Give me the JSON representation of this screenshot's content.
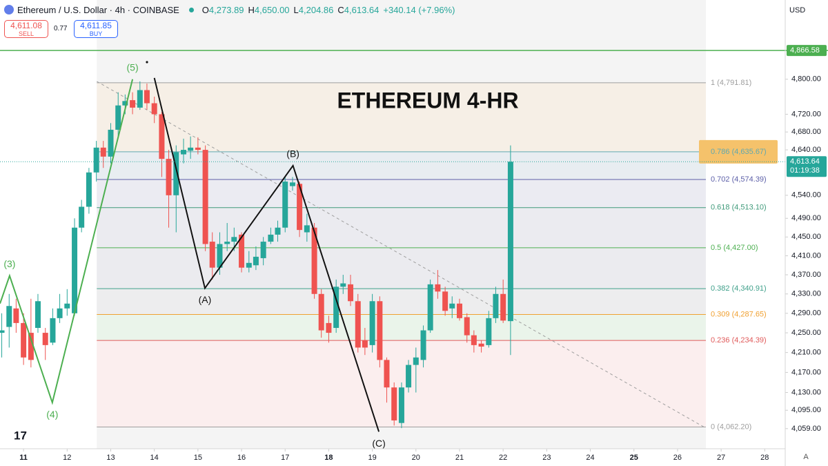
{
  "header": {
    "title": "Ethereum / U.S. Dollar · 4h · COINBASE",
    "ohlc": [
      {
        "key": "O",
        "value": "4,273.89"
      },
      {
        "key": "H",
        "value": "4,650.00"
      },
      {
        "key": "L",
        "value": "4,204.86"
      },
      {
        "key": "C",
        "value": "4,613.64"
      }
    ],
    "change": "+340.14 (+7.96%)",
    "sell": {
      "price": "4,611.08",
      "label": "SELL"
    },
    "spread": "0.77",
    "buy": {
      "price": "4,611.85",
      "label": "BUY"
    },
    "currency": "USD",
    "axis_mode": "A"
  },
  "chart_data": {
    "type": "candlestick",
    "annotation": "ETHEREUM 4-HR",
    "log_scale": true,
    "grid": false,
    "up_color": "#26a69a",
    "down_color": "#ef5350",
    "x": [
      10.5,
      10.67,
      10.83,
      11,
      11.17,
      11.33,
      11.5,
      11.67,
      11.83,
      12,
      12.17,
      12.33,
      12.5,
      12.67,
      12.83,
      13,
      13.17,
      13.33,
      13.5,
      13.67,
      13.83,
      14,
      14.17,
      14.33,
      14.5,
      14.67,
      14.83,
      15,
      15.17,
      15.33,
      15.5,
      15.67,
      15.83,
      16,
      16.17,
      16.33,
      16.5,
      16.67,
      16.83,
      17,
      17.17,
      17.33,
      17.5,
      17.67,
      17.83,
      18,
      18.17,
      18.33,
      18.5,
      18.67,
      18.83,
      19,
      19.17,
      19.33,
      19.5,
      19.67,
      19.83,
      20,
      20.17,
      20.33,
      20.5,
      20.67,
      20.83,
      21,
      21.17,
      21.33,
      21.5,
      21.67,
      21.83,
      22,
      22.17
    ],
    "open": [
      4250,
      4262,
      4300,
      4270,
      4250,
      4260,
      4250,
      4230,
      4280,
      4300,
      4290,
      4470,
      4515,
      4590,
      4645,
      4625,
      4685,
      4740,
      4752,
      4735,
      4775,
      4745,
      4720,
      4620,
      4540,
      4630,
      4638,
      4645,
      4640,
      4440,
      4385,
      4435,
      4440,
      4455,
      4385,
      4390,
      4405,
      4440,
      4455,
      4470,
      4560,
      4565,
      4460,
      4470,
      4330,
      4270,
      4260,
      4345,
      4350,
      4315,
      4235,
      4225,
      4315,
      4195,
      4140,
      4070,
      4140,
      4185,
      4195,
      4255,
      4350,
      4335,
      4300,
      4310,
      4282,
      4245,
      4228,
      4225,
      4280,
      4330,
      4273.89
    ],
    "high": [
      4290,
      4330,
      4320,
      4290,
      4320,
      4330,
      4260,
      4300,
      4330,
      4340,
      4490,
      4530,
      4600,
      4660,
      4660,
      4700,
      4770,
      4765,
      4770,
      4795,
      4790,
      4760,
      4725,
      4640,
      4650,
      4665,
      4670,
      4668,
      4650,
      4460,
      4460,
      4480,
      4470,
      4460,
      4420,
      4430,
      4450,
      4470,
      4485,
      4580,
      4580,
      4570,
      4500,
      4480,
      4340,
      4285,
      4360,
      4370,
      4370,
      4330,
      4260,
      4330,
      4325,
      4200,
      4150,
      4150,
      4195,
      4220,
      4265,
      4360,
      4380,
      4345,
      4325,
      4320,
      4290,
      4255,
      4235,
      4295,
      4345,
      4360,
      4650
    ],
    "low": [
      4200,
      4220,
      4250,
      4185,
      4180,
      4250,
      4195,
      4225,
      4270,
      4285,
      4285,
      4460,
      4500,
      4570,
      4600,
      4610,
      4670,
      4720,
      4720,
      4730,
      4730,
      4700,
      4580,
      4470,
      4460,
      4610,
      4620,
      4630,
      4420,
      4360,
      4370,
      4420,
      4420,
      4375,
      4375,
      4380,
      4390,
      4435,
      4440,
      4460,
      4550,
      4450,
      4440,
      4320,
      4240,
      4230,
      4250,
      4330,
      4305,
      4210,
      4205,
      4210,
      4180,
      4110,
      4065,
      4060,
      4130,
      4130,
      4180,
      4250,
      4320,
      4285,
      4280,
      4275,
      4230,
      4210,
      4210,
      4220,
      4270,
      4270,
      4204.86
    ],
    "close": [
      4255,
      4305,
      4270,
      4200,
      4195,
      4315,
      4225,
      4280,
      4300,
      4310,
      4470,
      4515,
      4590,
      4645,
      4625,
      4685,
      4740,
      4750,
      4735,
      4775,
      4745,
      4720,
      4620,
      4540,
      4635,
      4640,
      4645,
      4640,
      4435,
      4385,
      4435,
      4440,
      4450,
      4385,
      4395,
      4408,
      4440,
      4455,
      4470,
      4570,
      4568,
      4465,
      4475,
      4330,
      4255,
      4250,
      4345,
      4352,
      4315,
      4220,
      4220,
      4315,
      4195,
      4140,
      4075,
      4140,
      4185,
      4200,
      4255,
      4350,
      4335,
      4295,
      4310,
      4280,
      4245,
      4225,
      4222,
      4280,
      4330,
      4275,
      4613.64
    ],
    "xlim": [
      10.46,
      28.47
    ],
    "xticks": [
      11,
      12,
      13,
      14,
      15,
      16,
      17,
      18,
      19,
      20,
      21,
      22,
      23,
      24,
      25,
      26,
      27,
      28
    ],
    "xtick_bold": [
      11,
      18,
      25
    ],
    "ylim": [
      4020,
      4986
    ],
    "yticks": [
      {
        "value": 4800,
        "label": "4,800.00"
      },
      {
        "value": 4720,
        "label": "4,720.00"
      },
      {
        "value": 4680,
        "label": "4,680.00"
      },
      {
        "value": 4640,
        "label": "4,640.00"
      },
      {
        "value": 4540,
        "label": "4,540.00"
      },
      {
        "value": 4490,
        "label": "4,490.00"
      },
      {
        "value": 4450,
        "label": "4,450.00"
      },
      {
        "value": 4410,
        "label": "4,410.00"
      },
      {
        "value": 4370,
        "label": "4,370.00"
      },
      {
        "value": 4330,
        "label": "4,330.00"
      },
      {
        "value": 4290,
        "label": "4,290.00"
      },
      {
        "value": 4250,
        "label": "4,250.00"
      },
      {
        "value": 4210,
        "label": "4,210.00"
      },
      {
        "value": 4170,
        "label": "4,170.00"
      },
      {
        "value": 4130,
        "label": "4,130.00"
      },
      {
        "value": 4095,
        "label": "4,095.00"
      },
      {
        "value": 4059,
        "label": "4,059.00"
      }
    ],
    "hline": {
      "value": 4866.58,
      "label": "4,866.58",
      "color": "#4caf50"
    },
    "price_line": {
      "value": 4613.64,
      "label": "4,613.64",
      "countdown": "01:19:38",
      "color": "#26a69a"
    },
    "fib_x": [
      12.68,
      26.65
    ],
    "fib_levels": [
      {
        "label": "1 (4,791.81)",
        "value": 4791.81,
        "color": "#9e9e9e",
        "fill": "#f6efe6"
      },
      {
        "label": "0.786 (4,635.67)",
        "value": 4635.67,
        "color": "#5fa8b0",
        "fill": "#e8edf1",
        "highlight": true
      },
      {
        "label": "0.702 (4,574.39)",
        "value": 4574.39,
        "color": "#5c5fa8",
        "fill": "#ebebf2"
      },
      {
        "label": "0.618 (4,513.10)",
        "value": 4513.1,
        "color": "#3f9a7a",
        "fill": "#ebebf0"
      },
      {
        "label": "0.5 (4,427.00)",
        "value": 4427,
        "color": "#4caf50",
        "fill": "#ebebef"
      },
      {
        "label": "0.382 (4,340.91)",
        "value": 4340.91,
        "color": "#3fa08a",
        "fill": "#ededee"
      },
      {
        "label": "0.309 (4,287.65)",
        "value": 4287.65,
        "color": "#f0a030",
        "fill": "#eaf4ea"
      },
      {
        "label": "0.236 (4,234.39)",
        "value": 4234.39,
        "color": "#e05a5a",
        "fill": "#fbeeee"
      },
      {
        "label": "0 (4,062.20)",
        "value": 4062.2,
        "color": "#9e9e9e"
      }
    ],
    "trendline": {
      "x": [
        12.68,
        26.65
      ],
      "y": [
        4795,
        4060
      ],
      "color": "#9e9e9e"
    },
    "wave_lines": [
      {
        "color": "#4caf50",
        "x": [
          10.46,
          10.68,
          11.66,
          13.5
        ],
        "y": [
          4310,
          4368,
          4110,
          4800
        ],
        "labels": [
          null,
          "(3)",
          "(4)",
          "(5)"
        ]
      },
      {
        "color": "#111111",
        "x": [
          14.0,
          15.16,
          17.18,
          19.15
        ],
        "y": [
          4803,
          4342,
          4605,
          4053
        ],
        "labels": [
          null,
          "(A)",
          "(B)",
          "(C)"
        ]
      }
    ]
  }
}
